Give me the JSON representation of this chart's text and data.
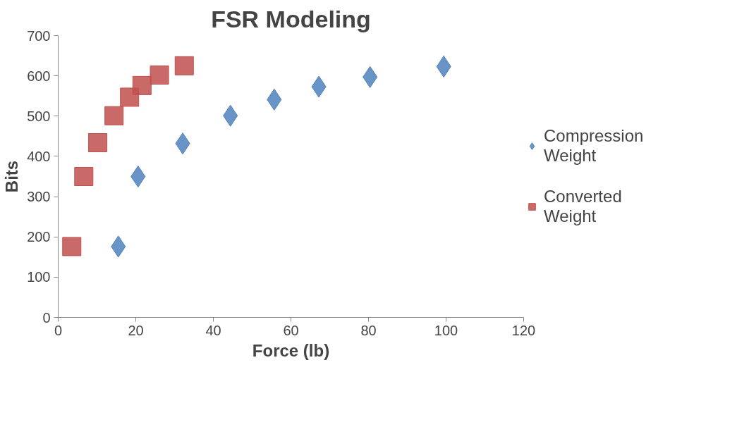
{
  "chart_data": {
    "type": "scatter",
    "title": "FSR Modeling",
    "xlabel": "Force (lb)",
    "ylabel": "Bits",
    "xlim": [
      0,
      120
    ],
    "xticks": [
      0,
      20,
      40,
      60,
      80,
      100,
      120
    ],
    "ylim": [
      0,
      700
    ],
    "yticks": [
      0,
      100,
      200,
      300,
      400,
      500,
      600,
      700
    ],
    "grid": false,
    "legend": "right",
    "series": [
      {
        "name": "Compression Weight",
        "color": "#4f81bd",
        "marker": "diamond",
        "x": [
          15.5,
          20.6,
          32.1,
          44.4,
          55.7,
          67.2,
          80.4,
          99.4
        ],
        "values": [
          176,
          350,
          432,
          501,
          541,
          573,
          597,
          623
        ]
      },
      {
        "name": "Converted Weight",
        "color": "#c0504d",
        "marker": "square",
        "x": [
          3.5,
          6.6,
          10.2,
          14.4,
          18.4,
          21.6,
          26.1,
          32.5
        ],
        "values": [
          176,
          350,
          434,
          501,
          547,
          576,
          602,
          625
        ]
      }
    ]
  }
}
